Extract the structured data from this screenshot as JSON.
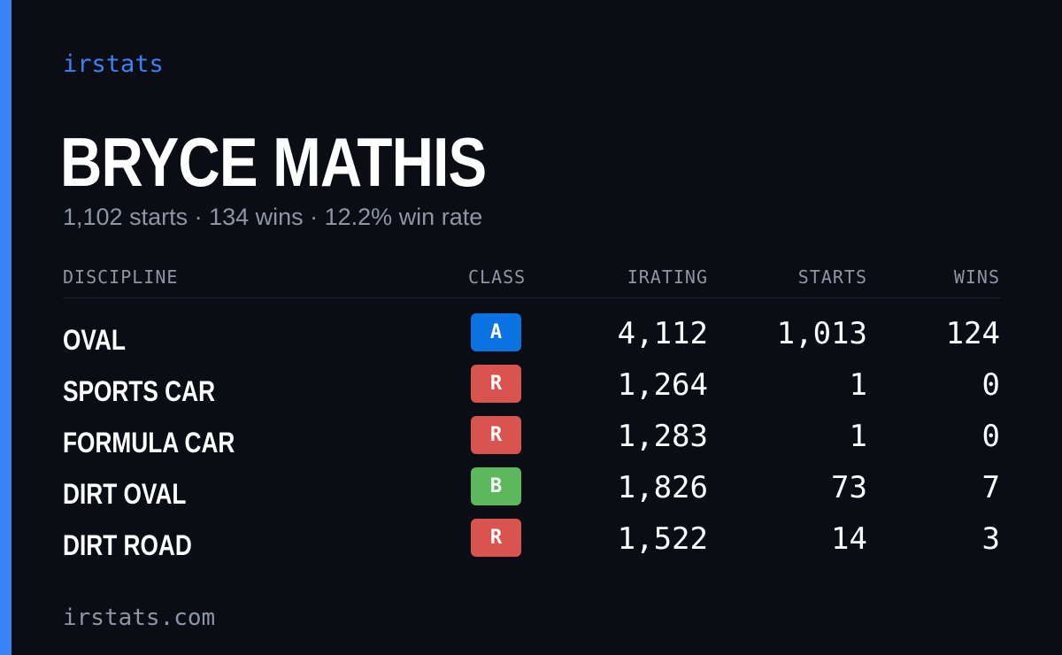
{
  "brand": "irstats",
  "player": {
    "name": "BRYCE MATHIS",
    "summary": "1,102 starts · 134 wins · 12.2% win rate"
  },
  "table": {
    "headers": {
      "discipline": "DISCIPLINE",
      "class": "CLASS",
      "irating": "IRATING",
      "starts": "STARTS",
      "wins": "WINS"
    },
    "rows": [
      {
        "discipline": "OVAL",
        "class": "A",
        "class_color": "#0a73e1",
        "irating": "4,112",
        "starts": "1,013",
        "wins": "124"
      },
      {
        "discipline": "SPORTS CAR",
        "class": "R",
        "class_color": "#d9534f",
        "irating": "1,264",
        "starts": "1",
        "wins": "0"
      },
      {
        "discipline": "FORMULA CAR",
        "class": "R",
        "class_color": "#d9534f",
        "irating": "1,283",
        "starts": "1",
        "wins": "0"
      },
      {
        "discipline": "DIRT OVAL",
        "class": "B",
        "class_color": "#5cb85c",
        "irating": "1,826",
        "starts": "73",
        "wins": "7"
      },
      {
        "discipline": "DIRT ROAD",
        "class": "R",
        "class_color": "#d9534f",
        "irating": "1,522",
        "starts": "14",
        "wins": "3"
      }
    ]
  },
  "footer": {
    "url": "irstats.com"
  },
  "colors": {
    "background": "#0a0d14",
    "accent": "#3b82f6",
    "muted_text": "#8c96a6"
  }
}
